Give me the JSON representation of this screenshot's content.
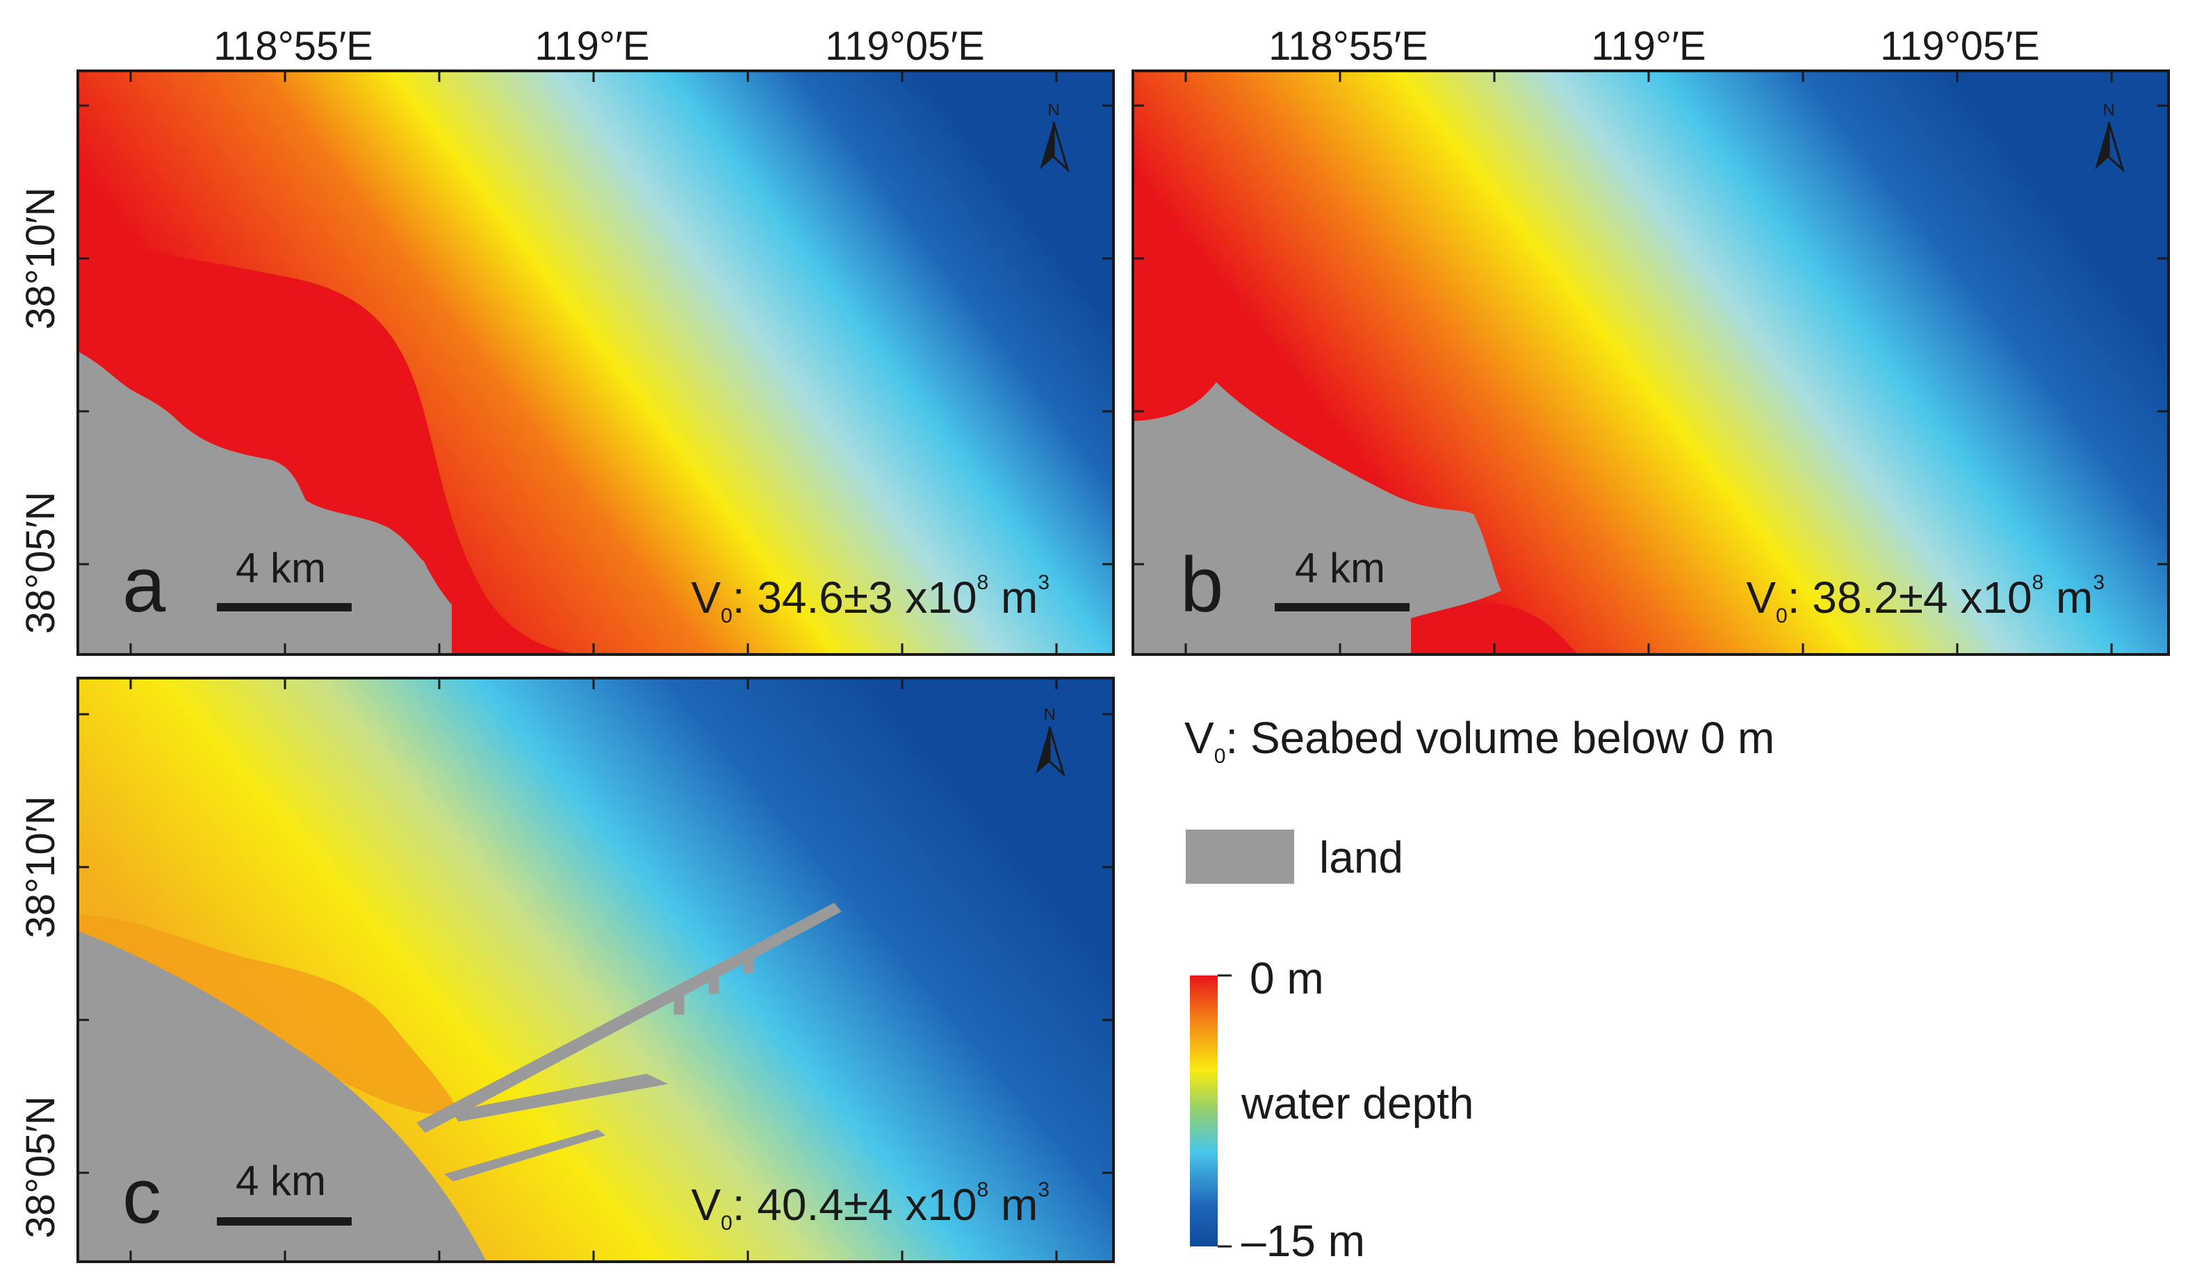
{
  "longitude_ticks": [
    "118°55′E",
    "119°′E",
    "119°05′E"
  ],
  "latitude_ticks": [
    "38°10′N",
    "38°05′N"
  ],
  "panels": [
    {
      "letter": "a",
      "scale": "4 km",
      "vol_sym": "V",
      "vol_sub": "0",
      "vol_value": ": 34.6±3 x10",
      "vol_exp": "8",
      "vol_unit": " m",
      "vol_unit_exp": "3"
    },
    {
      "letter": "b",
      "scale": "4 km",
      "vol_sym": "V",
      "vol_sub": "0",
      "vol_value": ": 38.2±4 x10",
      "vol_exp": "8",
      "vol_unit": " m",
      "vol_unit_exp": "3"
    },
    {
      "letter": "c",
      "scale": "4 km",
      "vol_sym": "V",
      "vol_sub": "0",
      "vol_value": ": 40.4±4 x10",
      "vol_exp": "8",
      "vol_unit": " m",
      "vol_unit_exp": "3"
    }
  ],
  "legend": {
    "v_sym": "V",
    "v_sub": "0",
    "v_desc": ": Seabed volume below 0 m",
    "land_label": "land",
    "depth_top": "0 m",
    "depth_mid": "water depth",
    "depth_bottom": "–15 m"
  },
  "north_symbol": "N",
  "colors": {
    "land": "#9a9a9a",
    "depth_0": "#e8141a",
    "depth_shallow": "#f9ea10",
    "depth_mid": "#4ac6ea",
    "depth_deep": "#0f4a9c"
  }
}
